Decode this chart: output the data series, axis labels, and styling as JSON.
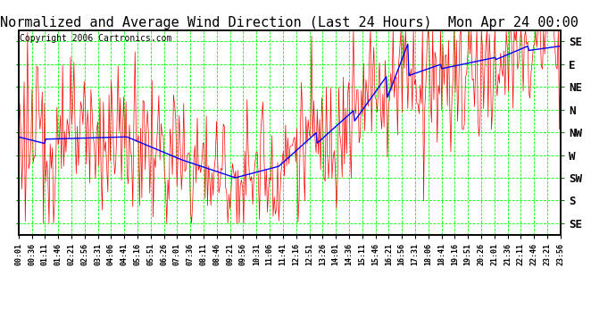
{
  "title": "Normalized and Average Wind Direction (Last 24 Hours)  Mon Apr 24 00:00",
  "copyright": "Copyright 2006 Cartronics.com",
  "ytick_labels": [
    "SE",
    "E",
    "NE",
    "N",
    "NW",
    "W",
    "SW",
    "S",
    "SE"
  ],
  "ytick_values": [
    8,
    7,
    6,
    5,
    4,
    3,
    2,
    1,
    0
  ],
  "ylim": [
    -0.5,
    8.5
  ],
  "background_color": "#ffffff",
  "plot_bg_color": "#ffffff",
  "border_color": "#000000",
  "grid_color": "#00ff00",
  "red_line_color": "#ff0000",
  "blue_line_color": "#0000ff",
  "title_fontsize": 11,
  "copyright_fontsize": 7,
  "tick_label_fontsize": 9
}
